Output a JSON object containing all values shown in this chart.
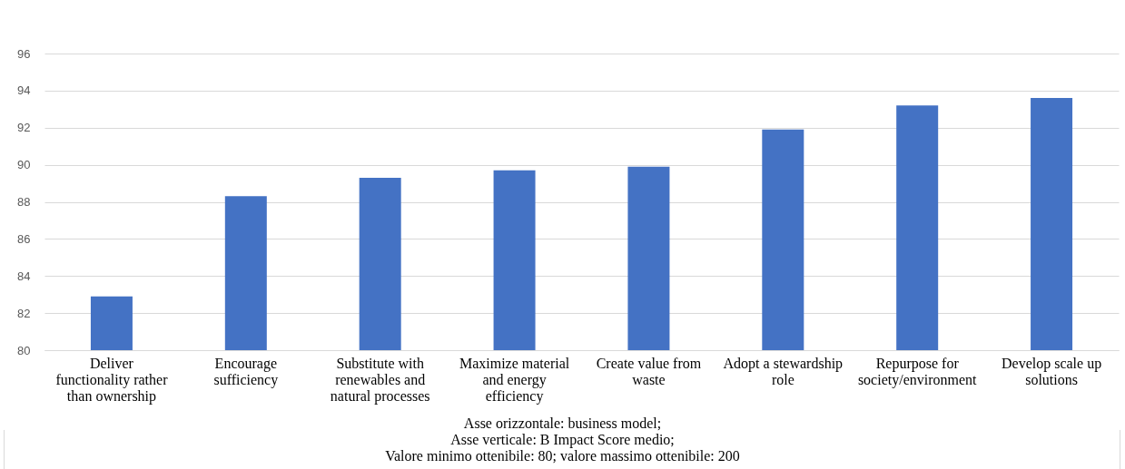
{
  "chart_data": {
    "type": "bar",
    "categories": [
      "Deliver functionality rather than ownership",
      "Encourage sufficiency",
      "Substitute with renewables and natural processes",
      "Maximize material and energy efficiency",
      "Create value from waste",
      "Adopt a stewardship role",
      "Repurpose for society/environment",
      "Develop scale up solutions"
    ],
    "values": [
      82.9,
      88.3,
      89.3,
      89.7,
      89.9,
      91.9,
      93.2,
      93.6
    ],
    "color": "#4472c4",
    "ylim": [
      80,
      96
    ],
    "yticks": [
      80,
      82,
      84,
      86,
      88,
      90,
      92,
      94,
      96
    ],
    "grid": "y",
    "annotations": [
      "Asse orizzontale: business model;",
      "Asse verticale: B Impact Score medio;",
      "Valore minimo ottenibile: 80; valore massimo ottenibile: 200"
    ]
  }
}
